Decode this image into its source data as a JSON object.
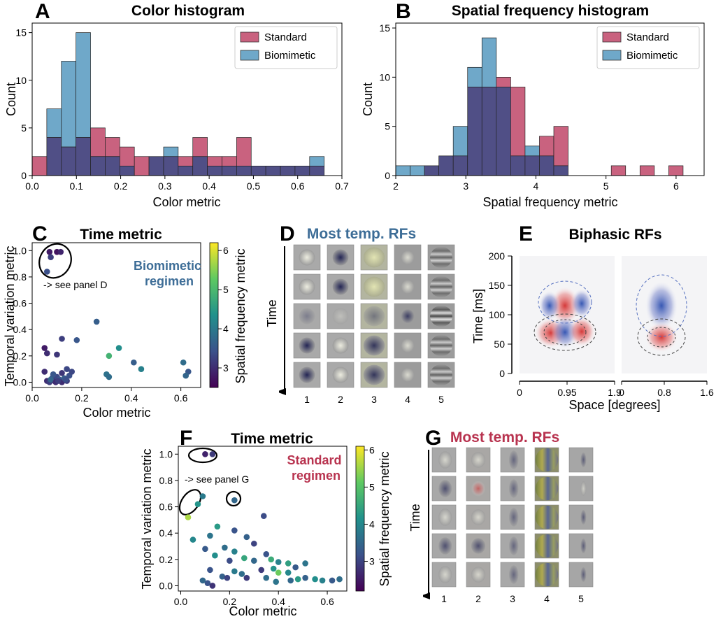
{
  "colors": {
    "standard": "#c9627f",
    "biomimetic": "#6fa8c9",
    "overlap": "#504f86",
    "bio_text": "#3d6d97",
    "std_text": "#b8334f",
    "rf_red": "#c62828",
    "rf_blue": "#2c4fb0"
  },
  "panel_labels": [
    "A",
    "B",
    "C",
    "D",
    "E",
    "F",
    "G"
  ],
  "legend": {
    "standard": "Standard",
    "biomimetic": "Biomimetic"
  },
  "chart_data": [
    {
      "id": "A",
      "type": "bar",
      "title": "Color histogram",
      "xlabel": "Color metric",
      "ylabel": "Count",
      "xlim": [
        0,
        0.7
      ],
      "ylim": [
        0,
        16
      ],
      "xticks": [
        0.0,
        0.1,
        0.2,
        0.3,
        0.4,
        0.5,
        0.6,
        0.7
      ],
      "xtick_labels": [
        "0.0",
        "0.1",
        "0.2",
        "0.3",
        "0.4",
        "0.5",
        "0.6",
        "0.7"
      ],
      "yticks": [
        0,
        5,
        10,
        15
      ],
      "ytick_labels": [
        "0",
        "5",
        "10",
        "15"
      ],
      "bin_edges": [
        0.0,
        0.033,
        0.066,
        0.099,
        0.132,
        0.165,
        0.198,
        0.231,
        0.264,
        0.297,
        0.33,
        0.363,
        0.396,
        0.429,
        0.462,
        0.495,
        0.528,
        0.561,
        0.594,
        0.627,
        0.66
      ],
      "series": [
        {
          "name": "Standard",
          "values": [
            2,
            4,
            3,
            4,
            5,
            4,
            3,
            2,
            2,
            2,
            2,
            4,
            2,
            2,
            4,
            1,
            1,
            1,
            1,
            1
          ]
        },
        {
          "name": "Biomimetic",
          "values": [
            0,
            7,
            12,
            15,
            2,
            2,
            1,
            0,
            2,
            3,
            1,
            2,
            1,
            1,
            1,
            1,
            1,
            1,
            1,
            2
          ]
        }
      ],
      "legend": "top-right"
    },
    {
      "id": "B",
      "type": "bar",
      "title": "Spatial frequency histogram",
      "xlabel": "Spatial frequency metric",
      "ylabel": "Count",
      "xlim": [
        2,
        6.4
      ],
      "ylim": [
        0,
        15.5
      ],
      "xticks": [
        2,
        3,
        4,
        5,
        6
      ],
      "xtick_labels": [
        "2",
        "3",
        "4",
        "5",
        "6"
      ],
      "yticks": [
        0,
        5,
        10,
        15
      ],
      "ytick_labels": [
        "0",
        "5",
        "10",
        "15"
      ],
      "bin_edges": [
        2.0,
        2.205,
        2.41,
        2.615,
        2.82,
        3.025,
        3.23,
        3.435,
        3.64,
        3.845,
        4.05,
        4.255,
        4.46,
        4.665,
        4.87,
        5.075,
        5.28,
        5.485,
        5.69,
        5.895,
        6.1,
        6.305
      ],
      "series": [
        {
          "name": "Standard",
          "values": [
            0,
            0,
            1,
            2,
            2,
            9,
            9,
            10,
            9,
            2,
            4,
            5,
            0,
            0,
            0,
            1,
            0,
            1,
            0,
            1,
            0
          ]
        },
        {
          "name": "Biomimetic",
          "values": [
            1,
            1,
            1,
            2,
            5,
            11,
            14,
            9,
            2,
            3,
            2,
            1,
            0,
            0,
            0,
            0,
            0,
            0,
            0,
            0,
            0
          ]
        }
      ],
      "legend": "top-right"
    },
    {
      "id": "C",
      "type": "scatter",
      "title": "Time metric",
      "xlabel": "Color metric",
      "ylabel": "Temporal variation metric",
      "xlim": [
        0,
        0.68
      ],
      "ylim": [
        -0.04,
        1.06
      ],
      "xticks": [
        0.0,
        0.2,
        0.4,
        0.6
      ],
      "xtick_labels": [
        "0.0",
        "0.2",
        "0.4",
        "0.6"
      ],
      "yticks": [
        0.0,
        0.2,
        0.4,
        0.6,
        0.8,
        1.0
      ],
      "ytick_labels": [
        "0.0",
        "0.2",
        "0.4",
        "0.6",
        "0.8",
        "1.0"
      ],
      "annotation": "Biomimetic\nregimen",
      "annotation_lines": [
        "Biomimetic",
        "regimen"
      ],
      "note": "-> see panel D",
      "colorbar": {
        "label": "Spatial frequency metric",
        "ticks": [
          3,
          4,
          5,
          6
        ],
        "range": [
          2.5,
          6.2
        ]
      },
      "points": [
        {
          "x": 0.07,
          "y": 0.99,
          "c": 2.8
        },
        {
          "x": 0.1,
          "y": 0.99,
          "c": 2.7
        },
        {
          "x": 0.115,
          "y": 0.99,
          "c": 2.9
        },
        {
          "x": 0.075,
          "y": 0.95,
          "c": 3.2
        },
        {
          "x": 0.06,
          "y": 0.84,
          "c": 3.4
        },
        {
          "x": 0.26,
          "y": 0.46,
          "c": 3.6
        },
        {
          "x": 0.12,
          "y": 0.33,
          "c": 3.2
        },
        {
          "x": 0.18,
          "y": 0.32,
          "c": 3.5
        },
        {
          "x": 0.05,
          "y": 0.26,
          "c": 2.8
        },
        {
          "x": 0.35,
          "y": 0.26,
          "c": 4.3
        },
        {
          "x": 0.06,
          "y": 0.22,
          "c": 3.0
        },
        {
          "x": 0.1,
          "y": 0.21,
          "c": 3.1
        },
        {
          "x": 0.31,
          "y": 0.2,
          "c": 4.9
        },
        {
          "x": 0.41,
          "y": 0.15,
          "c": 3.6
        },
        {
          "x": 0.61,
          "y": 0.15,
          "c": 3.8
        },
        {
          "x": 0.44,
          "y": 0.1,
          "c": 4.1
        },
        {
          "x": 0.14,
          "y": 0.1,
          "c": 3.3
        },
        {
          "x": 0.63,
          "y": 0.08,
          "c": 3.5
        },
        {
          "x": 0.05,
          "y": 0.08,
          "c": 3.0
        },
        {
          "x": 0.62,
          "y": 0.05,
          "c": 3.7
        },
        {
          "x": 0.3,
          "y": 0.06,
          "c": 3.9
        },
        {
          "x": 0.31,
          "y": 0.04,
          "c": 3.8
        },
        {
          "x": 0.06,
          "y": 0.01,
          "c": 3.0
        },
        {
          "x": 0.07,
          "y": 0.0,
          "c": 3.2
        },
        {
          "x": 0.08,
          "y": 0.03,
          "c": 3.4
        },
        {
          "x": 0.09,
          "y": 0.01,
          "c": 3.1
        },
        {
          "x": 0.1,
          "y": 0.04,
          "c": 3.3
        },
        {
          "x": 0.11,
          "y": 0.02,
          "c": 3.5
        },
        {
          "x": 0.12,
          "y": 0.0,
          "c": 3.0
        },
        {
          "x": 0.13,
          "y": 0.03,
          "c": 3.6
        },
        {
          "x": 0.14,
          "y": 0.01,
          "c": 3.2
        },
        {
          "x": 0.15,
          "y": 0.05,
          "c": 3.4
        },
        {
          "x": 0.16,
          "y": 0.08,
          "c": 3.3
        },
        {
          "x": 0.12,
          "y": 0.07,
          "c": 3.1
        },
        {
          "x": 0.085,
          "y": 0.06,
          "c": 3.5
        },
        {
          "x": 0.075,
          "y": 0.02,
          "c": 3.7
        },
        {
          "x": 0.095,
          "y": 0.0,
          "c": 3.0
        },
        {
          "x": 0.105,
          "y": 0.01,
          "c": 3.2
        },
        {
          "x": 0.135,
          "y": 0.02,
          "c": 3.4
        }
      ]
    },
    {
      "id": "F",
      "type": "scatter",
      "title": "Time metric",
      "xlabel": "Color metric",
      "ylabel": "Temporal variation metric",
      "xlim": [
        -0.01,
        0.68
      ],
      "ylim": [
        -0.04,
        1.06
      ],
      "xticks": [
        0.0,
        0.2,
        0.4,
        0.6
      ],
      "xtick_labels": [
        "0.0",
        "0.2",
        "0.4",
        "0.6"
      ],
      "yticks": [
        0.0,
        0.2,
        0.4,
        0.6,
        0.8,
        1.0
      ],
      "ytick_labels": [
        "0.0",
        "0.2",
        "0.4",
        "0.6",
        "0.8",
        "1.0"
      ],
      "annotation": "Standard\nregimen",
      "annotation_lines": [
        "Standard",
        "regimen"
      ],
      "note": "-> see panel G",
      "colorbar": {
        "label": "Spatial frequency metric",
        "ticks": [
          3,
          4,
          5,
          6
        ],
        "range": [
          2.2,
          6.1
        ]
      },
      "points": [
        {
          "x": 0.1,
          "y": 1.0,
          "c": 2.6
        },
        {
          "x": 0.13,
          "y": 1.0,
          "c": 2.9
        },
        {
          "x": 0.09,
          "y": 0.68,
          "c": 3.8
        },
        {
          "x": 0.22,
          "y": 0.65,
          "c": 3.5
        },
        {
          "x": 0.07,
          "y": 0.62,
          "c": 4.2
        },
        {
          "x": 0.03,
          "y": 0.52,
          "c": 5.6
        },
        {
          "x": 0.34,
          "y": 0.53,
          "c": 3.1
        },
        {
          "x": 0.15,
          "y": 0.45,
          "c": 4.3
        },
        {
          "x": 0.22,
          "y": 0.42,
          "c": 3.2
        },
        {
          "x": 0.12,
          "y": 0.38,
          "c": 3.7
        },
        {
          "x": 0.27,
          "y": 0.37,
          "c": 3.4
        },
        {
          "x": 0.05,
          "y": 0.35,
          "c": 4.0
        },
        {
          "x": 0.3,
          "y": 0.32,
          "c": 3.0
        },
        {
          "x": 0.18,
          "y": 0.29,
          "c": 3.6
        },
        {
          "x": 0.1,
          "y": 0.28,
          "c": 3.3
        },
        {
          "x": 0.22,
          "y": 0.26,
          "c": 3.9
        },
        {
          "x": 0.35,
          "y": 0.24,
          "c": 3.2
        },
        {
          "x": 0.14,
          "y": 0.23,
          "c": 4.1
        },
        {
          "x": 0.26,
          "y": 0.21,
          "c": 4.5
        },
        {
          "x": 0.37,
          "y": 0.2,
          "c": 4.6
        },
        {
          "x": 0.3,
          "y": 0.19,
          "c": 3.5
        },
        {
          "x": 0.2,
          "y": 0.19,
          "c": 3.1
        },
        {
          "x": 0.4,
          "y": 0.18,
          "c": 3.9
        },
        {
          "x": 0.44,
          "y": 0.17,
          "c": 4.4
        },
        {
          "x": 0.51,
          "y": 0.17,
          "c": 3.7
        },
        {
          "x": 0.47,
          "y": 0.14,
          "c": 3.3
        },
        {
          "x": 0.38,
          "y": 0.13,
          "c": 4.2
        },
        {
          "x": 0.33,
          "y": 0.12,
          "c": 2.9
        },
        {
          "x": 0.4,
          "y": 0.1,
          "c": 5.2
        },
        {
          "x": 0.44,
          "y": 0.1,
          "c": 4.0
        },
        {
          "x": 0.22,
          "y": 0.11,
          "c": 3.8
        },
        {
          "x": 0.12,
          "y": 0.12,
          "c": 3.2
        },
        {
          "x": 0.25,
          "y": 0.09,
          "c": 3.6
        },
        {
          "x": 0.17,
          "y": 0.07,
          "c": 3.4
        },
        {
          "x": 0.19,
          "y": 0.06,
          "c": 3.0
        },
        {
          "x": 0.27,
          "y": 0.06,
          "c": 2.9
        },
        {
          "x": 0.35,
          "y": 0.06,
          "c": 3.6
        },
        {
          "x": 0.48,
          "y": 0.05,
          "c": 4.3
        },
        {
          "x": 0.45,
          "y": 0.04,
          "c": 3.5
        },
        {
          "x": 0.51,
          "y": 0.06,
          "c": 3.4
        },
        {
          "x": 0.55,
          "y": 0.05,
          "c": 4.1
        },
        {
          "x": 0.58,
          "y": 0.04,
          "c": 3.9
        },
        {
          "x": 0.62,
          "y": 0.04,
          "c": 3.3
        },
        {
          "x": 0.65,
          "y": 0.05,
          "c": 3.6
        },
        {
          "x": 0.11,
          "y": 0.02,
          "c": 3.2
        },
        {
          "x": 0.13,
          "y": 0.0,
          "c": 2.8
        },
        {
          "x": 0.09,
          "y": 0.04,
          "c": 3.5
        },
        {
          "x": 0.39,
          "y": 0.03,
          "c": 3.7
        }
      ]
    },
    {
      "id": "E",
      "type": "heatmap",
      "title": "Biphasic RFs",
      "xlabel": "Space [degrees]",
      "ylabel": "Time [ms]",
      "ylim": [
        0,
        200
      ],
      "yticks": [
        0,
        50,
        100,
        150,
        200
      ],
      "ytick_labels": [
        "0",
        "50",
        "100",
        "150",
        "200"
      ],
      "xaxes": [
        {
          "ticks": [
            0,
            0.95,
            1.9
          ],
          "tick_labels": [
            "0",
            "0.95",
            "1.9"
          ]
        },
        {
          "ticks": [
            0,
            0.8,
            1.6
          ],
          "tick_labels": [
            "0",
            "0.8",
            "1.6"
          ]
        }
      ],
      "description_lobes": [
        {
          "rf": 1,
          "sign": "positive",
          "x": 0.95,
          "y": 108
        },
        {
          "rf": 1,
          "sign": "negative",
          "x": 0.95,
          "y": 60
        },
        {
          "rf": 1,
          "sign": "positive",
          "x": 0.65,
          "y": 62
        },
        {
          "rf": 2,
          "sign": "negative",
          "x": 0.8,
          "y": 105
        },
        {
          "rf": 2,
          "sign": "positive",
          "x": 0.8,
          "y": 58
        }
      ]
    }
  ],
  "panel_D": {
    "title": "Most temp. RFs",
    "time_label": "Time",
    "columns": [
      "1",
      "2",
      "3",
      "4",
      "5"
    ]
  },
  "panel_G": {
    "title": "Most temp. RFs",
    "time_label": "Time",
    "columns": [
      "1",
      "2",
      "3",
      "4",
      "5"
    ]
  }
}
